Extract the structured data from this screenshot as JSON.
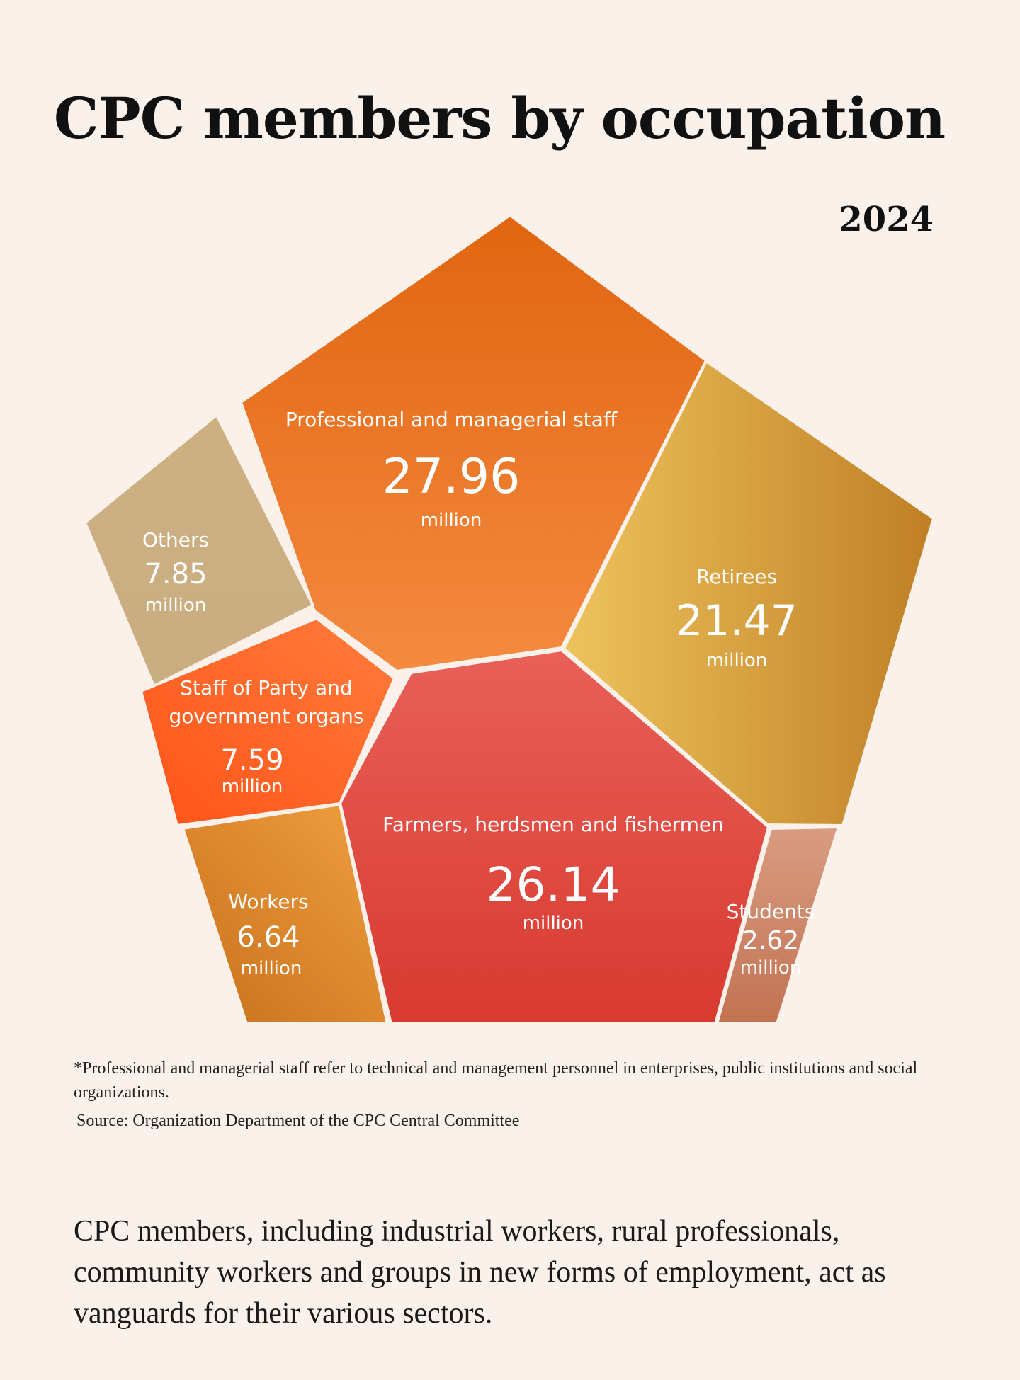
{
  "title": "CPC members by occupation",
  "year": "2024",
  "footnote": "*Professional and managerial staff refer to technical and management personnel in enterprises, public institutions and social organizations.",
  "source": "Source: Organization Department of the CPC Central Committee",
  "caption": "CPC members, including industrial workers, rural professionals, community workers and groups in new forms of employment, act as vanguards for their various sectors.",
  "chart_data": {
    "type": "voronoi-treemap",
    "unit": "million",
    "categories": [
      {
        "name": "Professional and managerial staff",
        "value": 27.96,
        "value_label": "27.96",
        "color": "#e8721f"
      },
      {
        "name": "Farmers, herdsmen and fishermen",
        "value": 26.14,
        "value_label": "26.14",
        "color": "#e04a42"
      },
      {
        "name": "Retirees",
        "value": 21.47,
        "value_label": "21.47",
        "color": "#d7a13a"
      },
      {
        "name": "Others",
        "value": 7.85,
        "value_label": "7.85",
        "color": "#ccb182"
      },
      {
        "name": "Staff of Party and government organs",
        "value": 7.59,
        "value_label": "7.59",
        "color": "#ff6a2c"
      },
      {
        "name": "Workers",
        "value": 6.64,
        "value_label": "6.64",
        "color": "#e0892e"
      },
      {
        "name": "Students",
        "value": 2.62,
        "value_label": "2.62",
        "color": "#cf8567"
      }
    ]
  }
}
